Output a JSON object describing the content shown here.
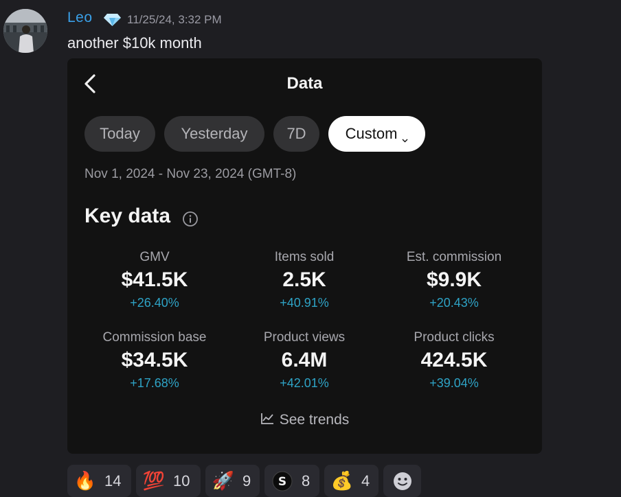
{
  "message": {
    "username": "Leo",
    "timestamp": "11/25/24, 3:32 PM",
    "text": "another $10k month",
    "badge_icon": "gem-icon",
    "colors": {
      "username": "#3aa0e8",
      "background": "#1e1e22"
    }
  },
  "card": {
    "title": "Data",
    "back_icon": "chevron-left-icon",
    "tabs": [
      {
        "label": "Today",
        "active": false
      },
      {
        "label": "Yesterday",
        "active": false
      },
      {
        "label": "7D",
        "active": false
      },
      {
        "label": "Custom",
        "active": true
      }
    ],
    "date_range": "Nov 1, 2024 - Nov 23, 2024 (GMT-8)",
    "key_data_title": "Key data",
    "metrics": [
      {
        "label": "GMV",
        "value": "$41.5K",
        "change": "+26.40%"
      },
      {
        "label": "Items sold",
        "value": "2.5K",
        "change": "+40.91%"
      },
      {
        "label": "Est. commission",
        "value": "$9.9K",
        "change": "+20.43%"
      },
      {
        "label": "Commission base",
        "value": "$34.5K",
        "change": "+17.68%"
      },
      {
        "label": "Product views",
        "value": "6.4M",
        "change": "+42.01%"
      },
      {
        "label": "Product clicks",
        "value": "424.5K",
        "change": "+39.04%"
      }
    ],
    "see_trends": "See trends",
    "colors": {
      "change": "#2ea3c6",
      "active_tab": "#ffffff",
      "tab": "#323234"
    }
  },
  "reactions": [
    {
      "emoji": "🔥",
      "icon": "fire-icon",
      "count": "14"
    },
    {
      "emoji": "💯",
      "icon": "hundred-points-icon",
      "count": "10"
    },
    {
      "emoji": "🚀",
      "icon": "rocket-icon",
      "count": "9"
    },
    {
      "emoji": "",
      "icon": "custom-s-coin-icon",
      "count": "8"
    },
    {
      "emoji": "💰",
      "icon": "money-bag-icon",
      "count": "4"
    },
    {
      "emoji": "",
      "icon": "add-reaction-icon",
      "count": ""
    }
  ]
}
